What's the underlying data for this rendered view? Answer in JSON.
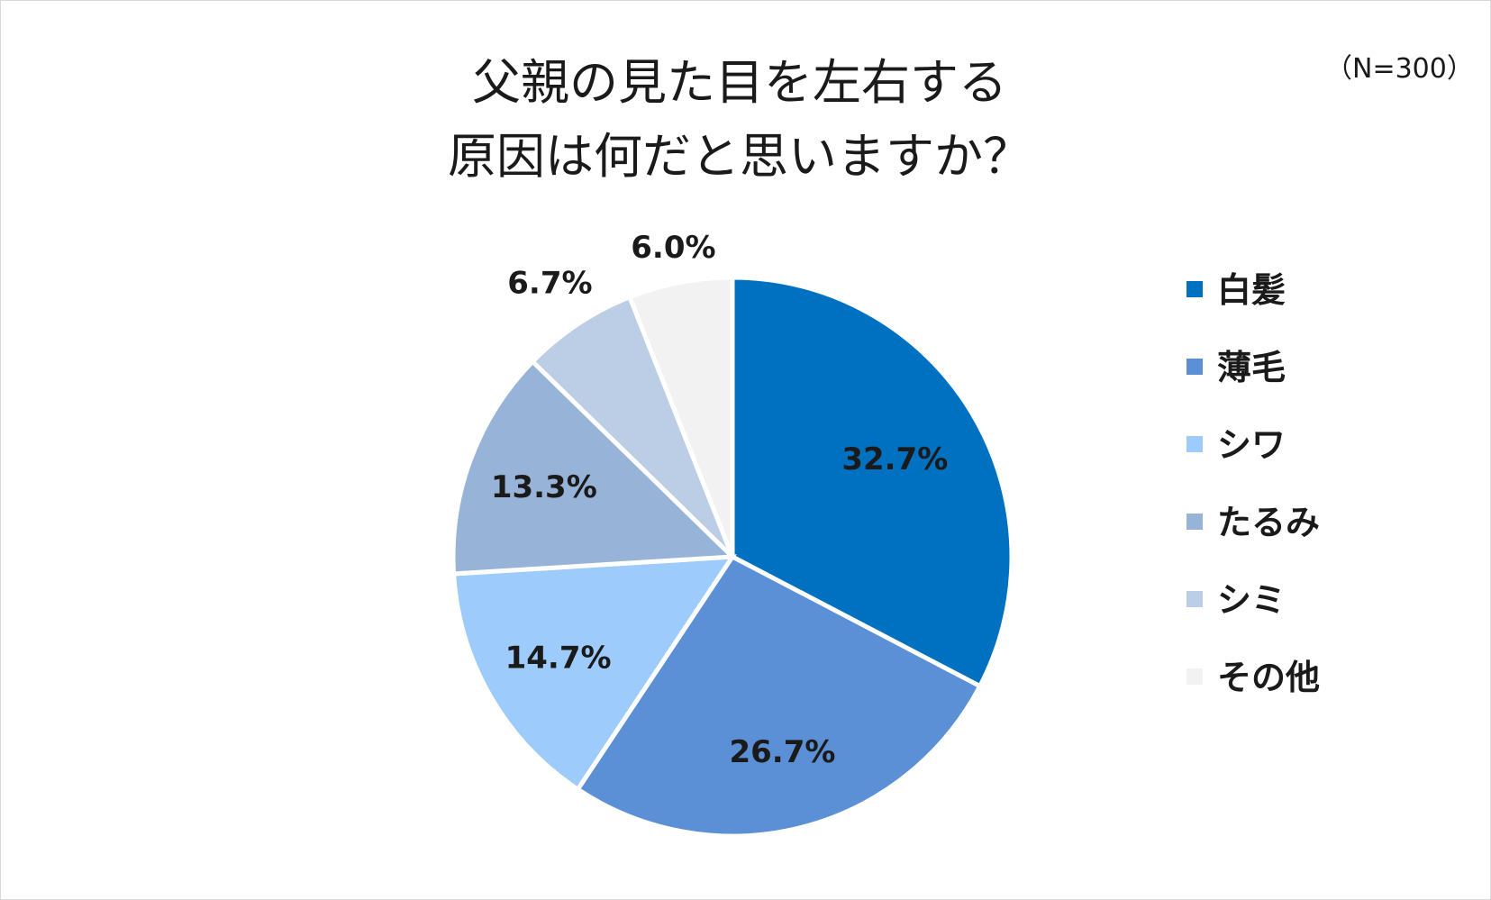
{
  "chart_data": {
    "type": "pie",
    "title": "父親の見た目を左右する原因は何だと思いますか？",
    "title_lines": [
      "父親の見た目を左右する",
      "原因は何だと思いますか？"
    ],
    "sample_size": "（N=300）",
    "legend_position": "right",
    "slices": [
      {
        "label": "白髪",
        "value": 32.7,
        "value_label": "32.7%",
        "color": "#0070c0"
      },
      {
        "label": "薄毛",
        "value": 26.7,
        "value_label": "26.7%",
        "color": "#5b8fd6"
      },
      {
        "label": "シワ",
        "value": 14.7,
        "value_label": "14.7%",
        "color": "#9dcbfc"
      },
      {
        "label": "たるみ",
        "value": 13.3,
        "value_label": "13.3%",
        "color": "#98b3d8"
      },
      {
        "label": "シミ",
        "value": 6.7,
        "value_label": "6.7%",
        "color": "#bccde6"
      },
      {
        "label": "その他",
        "value": 6.0,
        "value_label": "6.0%",
        "color": "#f2f2f2"
      }
    ]
  }
}
